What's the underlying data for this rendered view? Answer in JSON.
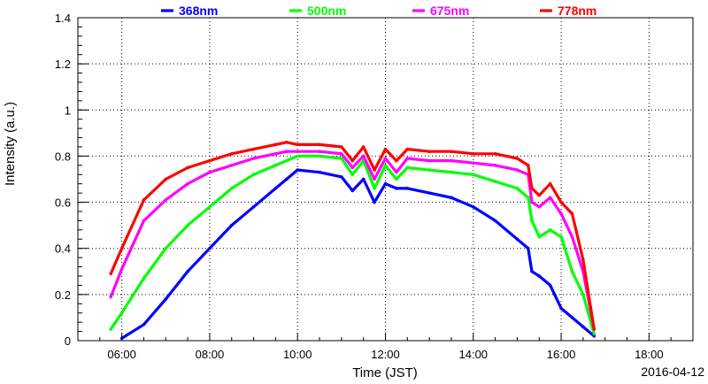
{
  "chart_data": {
    "type": "line",
    "xlabel": "Time (JST)",
    "ylabel": "Intensity (a.u.)",
    "date": "2016-04-12",
    "xlim": [
      "05:00",
      "19:00"
    ],
    "ylim": [
      0,
      1.4
    ],
    "grid": true,
    "legend_position": "top",
    "x_ticks": [
      "06:00",
      "08:00",
      "10:00",
      "12:00",
      "14:00",
      "16:00",
      "18:00"
    ],
    "y_ticks": [
      "0",
      "0.2",
      "0.4",
      "0.6",
      "0.8",
      "1",
      "1.2",
      "1.4"
    ],
    "x": [
      "05:45",
      "06:00",
      "06:30",
      "07:00",
      "07:30",
      "08:00",
      "08:30",
      "09:00",
      "09:30",
      "09:45",
      "10:00",
      "10:30",
      "11:00",
      "11:15",
      "11:30",
      "11:45",
      "12:00",
      "12:15",
      "12:30",
      "13:00",
      "13:30",
      "14:00",
      "14:30",
      "15:00",
      "15:15",
      "15:20",
      "15:30",
      "15:45",
      "16:00",
      "16:15",
      "16:30",
      "16:45"
    ],
    "series": [
      {
        "name": "368nm",
        "color": "#0000ff",
        "values": [
          null,
          0.01,
          0.07,
          0.18,
          0.3,
          0.4,
          0.5,
          0.58,
          0.66,
          0.7,
          0.74,
          0.73,
          0.71,
          0.65,
          0.7,
          0.6,
          0.68,
          0.66,
          0.66,
          0.64,
          0.62,
          0.58,
          0.52,
          0.44,
          0.4,
          0.3,
          0.28,
          0.24,
          0.14,
          0.1,
          0.06,
          0.02
        ]
      },
      {
        "name": "500nm",
        "color": "#00ff00",
        "values": [
          0.05,
          0.12,
          0.27,
          0.4,
          0.5,
          0.58,
          0.66,
          0.72,
          0.76,
          0.78,
          0.8,
          0.8,
          0.79,
          0.72,
          0.78,
          0.66,
          0.76,
          0.7,
          0.75,
          0.74,
          0.73,
          0.72,
          0.69,
          0.66,
          0.62,
          0.52,
          0.45,
          0.48,
          0.45,
          0.3,
          0.2,
          0.03
        ]
      },
      {
        "name": "675nm",
        "color": "#ff00ff",
        "values": [
          0.19,
          0.31,
          0.52,
          0.61,
          0.68,
          0.73,
          0.76,
          0.79,
          0.81,
          0.82,
          0.82,
          0.82,
          0.81,
          0.75,
          0.8,
          0.7,
          0.79,
          0.73,
          0.79,
          0.78,
          0.78,
          0.77,
          0.76,
          0.74,
          0.72,
          0.6,
          0.58,
          0.62,
          0.55,
          0.45,
          0.3,
          0.05
        ]
      },
      {
        "name": "778nm",
        "color": "#ff0000",
        "values": [
          0.29,
          0.4,
          0.61,
          0.7,
          0.75,
          0.78,
          0.81,
          0.83,
          0.85,
          0.86,
          0.85,
          0.85,
          0.84,
          0.78,
          0.84,
          0.74,
          0.83,
          0.78,
          0.83,
          0.82,
          0.82,
          0.81,
          0.81,
          0.79,
          0.76,
          0.66,
          0.63,
          0.68,
          0.6,
          0.55,
          0.35,
          0.05
        ]
      }
    ]
  }
}
